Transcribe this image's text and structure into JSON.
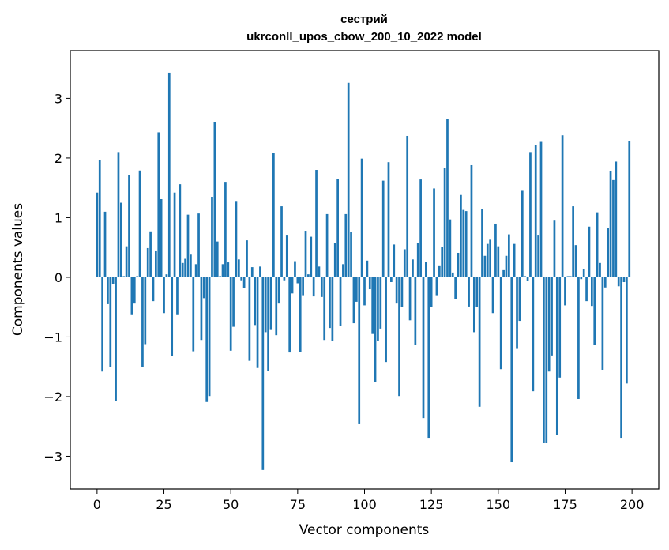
{
  "chart_data": {
    "type": "bar",
    "title": "сестрий",
    "subtitle": "ukrconll_upos_cbow_200_10_2022 model",
    "xlabel": "Vector components",
    "ylabel": "Components values",
    "xlim": [
      -10,
      210
    ],
    "ylim": [
      -3.55,
      3.8
    ],
    "xticks": [
      0,
      25,
      50,
      75,
      100,
      125,
      150,
      175,
      200
    ],
    "xtick_labels": [
      "0",
      "25",
      "50",
      "75",
      "100",
      "125",
      "150",
      "175",
      "200"
    ],
    "yticks": [
      -3,
      -2,
      -1,
      0,
      1,
      2,
      3
    ],
    "ytick_labels": [
      "−3",
      "−2",
      "−1",
      "0",
      "1",
      "2",
      "3"
    ],
    "bar_color": "#1f77b4",
    "grid": false,
    "x": [
      0,
      1,
      2,
      3,
      4,
      5,
      6,
      7,
      8,
      9,
      10,
      11,
      12,
      13,
      14,
      15,
      16,
      17,
      18,
      19,
      20,
      21,
      22,
      23,
      24,
      25,
      26,
      27,
      28,
      29,
      30,
      31,
      32,
      33,
      34,
      35,
      36,
      37,
      38,
      39,
      40,
      41,
      42,
      43,
      44,
      45,
      46,
      47,
      48,
      49,
      50,
      51,
      52,
      53,
      54,
      55,
      56,
      57,
      58,
      59,
      60,
      61,
      62,
      63,
      64,
      65,
      66,
      67,
      68,
      69,
      70,
      71,
      72,
      73,
      74,
      75,
      76,
      77,
      78,
      79,
      80,
      81,
      82,
      83,
      84,
      85,
      86,
      87,
      88,
      89,
      90,
      91,
      92,
      93,
      94,
      95,
      96,
      97,
      98,
      99,
      100,
      101,
      102,
      103,
      104,
      105,
      106,
      107,
      108,
      109,
      110,
      111,
      112,
      113,
      114,
      115,
      116,
      117,
      118,
      119,
      120,
      121,
      122,
      123,
      124,
      125,
      126,
      127,
      128,
      129,
      130,
      131,
      132,
      133,
      134,
      135,
      136,
      137,
      138,
      139,
      140,
      141,
      142,
      143,
      144,
      145,
      146,
      147,
      148,
      149,
      150,
      151,
      152,
      153,
      154,
      155,
      156,
      157,
      158,
      159,
      160,
      161,
      162,
      163,
      164,
      165,
      166,
      167,
      168,
      169,
      170,
      171,
      172,
      173,
      174,
      175,
      176,
      177,
      178,
      179,
      180,
      181,
      182,
      183,
      184,
      185,
      186,
      187,
      188,
      189,
      190,
      191,
      192,
      193,
      194,
      195,
      196,
      197,
      198,
      199
    ],
    "values": [
      1.42,
      1.97,
      -1.58,
      1.1,
      -0.45,
      -1.5,
      -0.12,
      -2.08,
      2.1,
      1.25,
      0.02,
      0.52,
      1.71,
      -0.62,
      -0.44,
      0.02,
      1.79,
      -1.5,
      -1.12,
      0.49,
      0.77,
      -0.4,
      0.45,
      2.43,
      1.31,
      -0.6,
      0.05,
      3.43,
      -1.32,
      1.42,
      -0.62,
      1.56,
      0.24,
      0.31,
      1.05,
      0.38,
      -1.24,
      0.22,
      1.07,
      -1.05,
      -0.35,
      -2.09,
      -1.99,
      1.35,
      2.6,
      0.6,
      0.02,
      0.22,
      1.6,
      0.25,
      -1.23,
      -0.83,
      1.28,
      0.3,
      -0.05,
      -0.18,
      0.62,
      -1.4,
      0.17,
      -0.8,
      -1.52,
      0.18,
      -3.23,
      -0.92,
      -1.57,
      -0.87,
      2.08,
      -0.97,
      -0.44,
      1.19,
      -0.05,
      0.7,
      -1.26,
      -0.27,
      0.27,
      -0.1,
      -1.25,
      -0.3,
      0.78,
      0.05,
      0.68,
      -0.32,
      1.8,
      0.18,
      -0.33,
      -1.05,
      1.06,
      -0.85,
      -1.07,
      0.58,
      1.65,
      -0.81,
      0.22,
      1.06,
      3.26,
      0.76,
      -0.77,
      -0.41,
      -2.45,
      1.99,
      -0.47,
      0.28,
      -0.2,
      -0.95,
      -1.76,
      -1.06,
      -0.86,
      1.62,
      -1.42,
      1.93,
      -0.08,
      0.55,
      -0.44,
      -1.99,
      -0.5,
      0.47,
      2.37,
      -0.72,
      0.3,
      -1.13,
      0.58,
      1.64,
      -2.36,
      0.26,
      -2.69,
      -0.5,
      1.49,
      -0.3,
      0.2,
      0.51,
      1.84,
      2.66,
      0.97,
      0.08,
      -0.37,
      0.41,
      1.38,
      1.13,
      1.11,
      -0.49,
      1.88,
      -0.92,
      -0.5,
      -2.17,
      1.14,
      0.36,
      0.56,
      0.63,
      -0.6,
      0.9,
      0.52,
      -1.54,
      0.12,
      0.36,
      0.72,
      -3.1,
      0.56,
      -1.2,
      -0.73,
      1.45,
      0.02,
      -0.06,
      2.1,
      -1.91,
      2.22,
      0.7,
      2.27,
      -2.78,
      -2.78,
      -1.58,
      -1.31,
      0.95,
      -2.64,
      -1.68,
      2.38,
      -0.47,
      0.02,
      0.02,
      1.19,
      0.54,
      -2.04,
      -0.03,
      0.14,
      -0.4,
      0.85,
      -0.48,
      -1.13,
      1.09,
      0.24,
      -1.55,
      -0.17,
      0.82,
      1.78,
      1.63,
      1.94,
      -0.15,
      -2.69,
      -0.08,
      -1.78,
      2.29
    ]
  }
}
